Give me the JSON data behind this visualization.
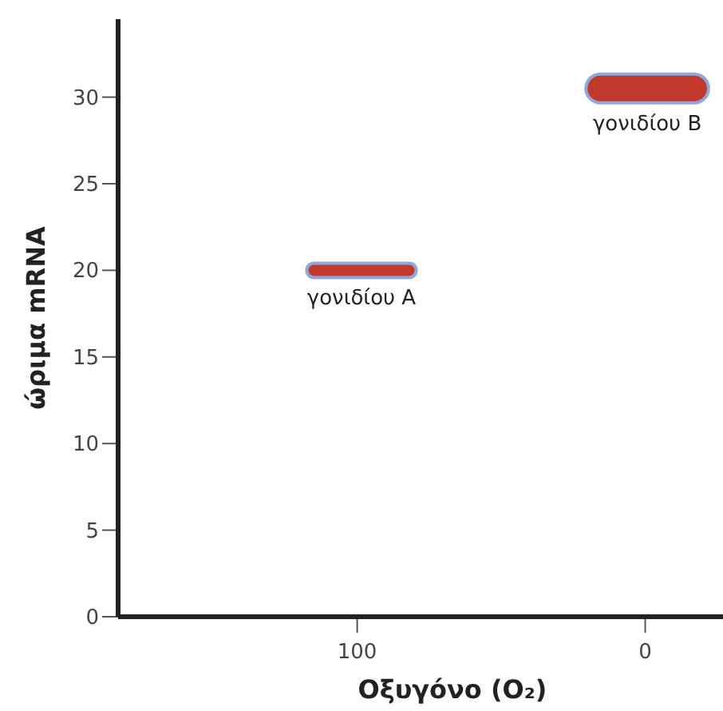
{
  "chart_data": {
    "type": "line",
    "xlabel": "Οξυγόνο (O₂)",
    "ylabel": "ώριμα mRNA",
    "xlim": [
      183,
      -27
    ],
    "ylim": [
      0,
      34.5
    ],
    "xticks": [
      100,
      0
    ],
    "yticks": [
      0,
      5,
      10,
      15,
      20,
      25,
      30
    ],
    "grid": false,
    "series": [
      {
        "name": "γονιδίου Α",
        "color": "#c0392b",
        "x": [
          115,
          82
        ],
        "values": [
          20,
          20
        ]
      },
      {
        "name": "γονιδίου Β",
        "color": "#c0392b",
        "x": [
          15.6,
          -17
        ],
        "values": [
          30.5,
          30.5
        ]
      }
    ]
  }
}
